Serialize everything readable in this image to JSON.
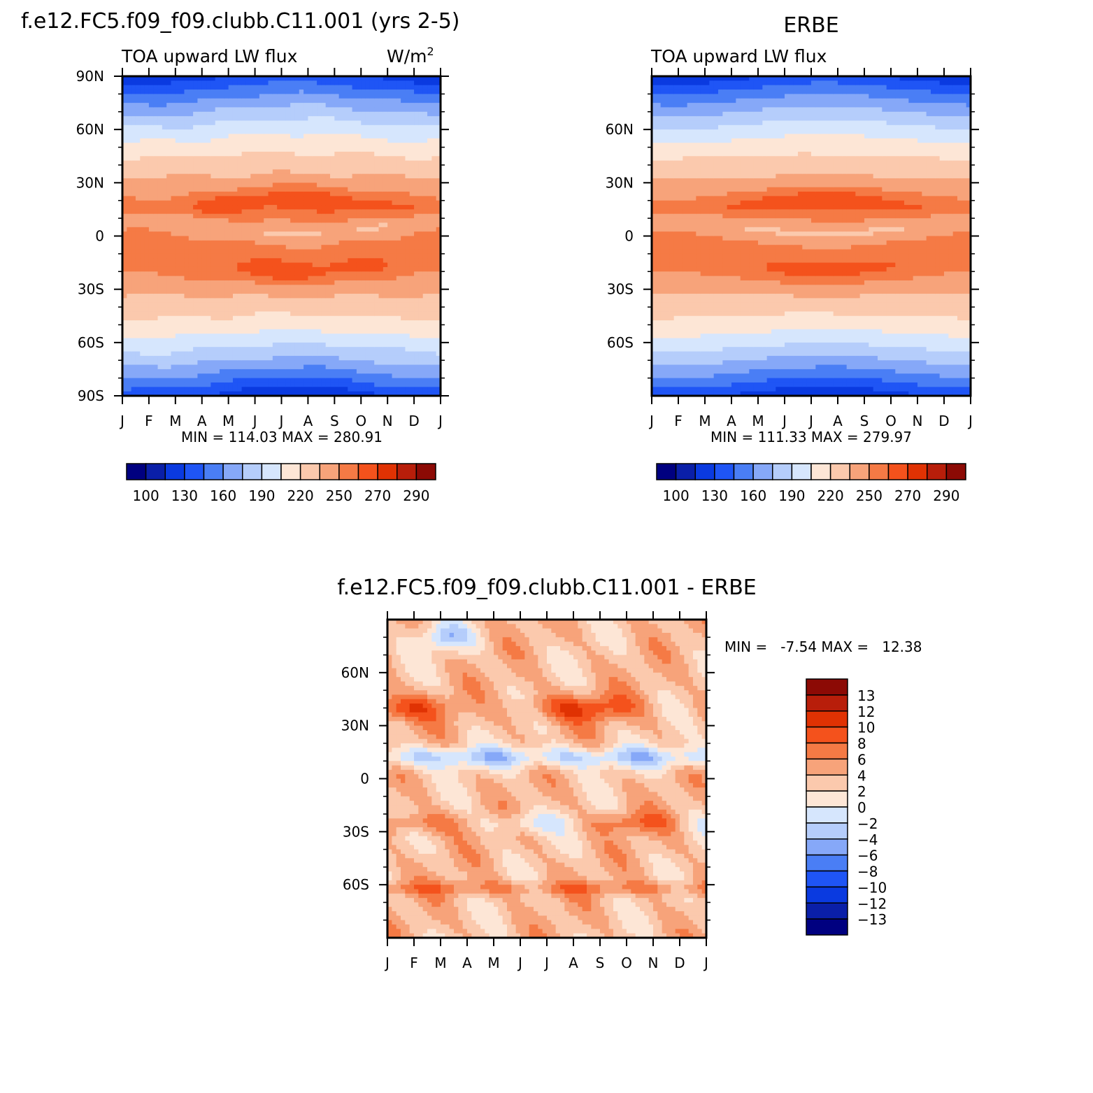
{
  "figure": {
    "case_title": "f.e12.FC5.f09_f09.clubb.C11.001 (yrs 2-5)",
    "obs_title": "ERBE",
    "diff_title": "f.e12.FC5.f09_f09.clubb.C11.001 - ERBE"
  },
  "colors": {
    "abs_levels": [
      "#000080",
      "#0a1fa8",
      "#0a3ae0",
      "#1f55f5",
      "#4a7ef5",
      "#86a8f8",
      "#b5cdfb",
      "#d6e6fd",
      "#fde6d6",
      "#fbc9ad",
      "#f7a37a",
      "#f57a45",
      "#f4521c",
      "#e03203",
      "#b81e0a",
      "#8c0a05"
    ],
    "diff_levels": [
      "#000080",
      "#0a1fa8",
      "#0a3ae0",
      "#1f55f5",
      "#4a7ef5",
      "#86a8f8",
      "#b5cdfb",
      "#d6e6fd",
      "#fde6d6",
      "#fbc9ad",
      "#f7a37a",
      "#f57a45",
      "#f4521c",
      "#e03203",
      "#b81e0a",
      "#8c0a05"
    ]
  },
  "chart_data": [
    {
      "type": "heatmap",
      "title": "f.e12.FC5.f09_f09.clubb.C11.001 (yrs 2-5)",
      "subtitle": "TOA upward LW flux",
      "units": "W/m2",
      "units_base": "W/m",
      "units_sup": "2",
      "x_ticks": [
        "J",
        "F",
        "M",
        "A",
        "M",
        "J",
        "J",
        "A",
        "S",
        "O",
        "N",
        "D",
        "J"
      ],
      "y_ticks": [
        "90N",
        "60N",
        "30N",
        "0",
        "30S",
        "60S",
        "90S"
      ],
      "ylim": [
        -90,
        90
      ],
      "minmax_text": "MIN = 114.03 MAX = 280.91",
      "min": 114.03,
      "max": 280.91,
      "colorbar_labels": [
        "100",
        "130",
        "160",
        "190",
        "220",
        "250",
        "270",
        "290"
      ],
      "levels": [
        100,
        115,
        130,
        145,
        160,
        175,
        190,
        205,
        220,
        235,
        250,
        260,
        270,
        280,
        290
      ]
    },
    {
      "type": "heatmap",
      "title": "ERBE",
      "subtitle": "TOA upward LW flux",
      "x_ticks": [
        "J",
        "F",
        "M",
        "A",
        "M",
        "J",
        "J",
        "A",
        "S",
        "O",
        "N",
        "D",
        "J"
      ],
      "y_ticks": [
        "60N",
        "30N",
        "0",
        "30S",
        "60S"
      ],
      "ylim": [
        -90,
        90
      ],
      "minmax_text": "MIN = 111.33 MAX = 279.97",
      "min": 111.33,
      "max": 279.97,
      "colorbar_labels": [
        "100",
        "130",
        "160",
        "190",
        "220",
        "250",
        "270",
        "290"
      ],
      "levels": [
        100,
        115,
        130,
        145,
        160,
        175,
        190,
        205,
        220,
        235,
        250,
        260,
        270,
        280,
        290
      ]
    },
    {
      "type": "heatmap",
      "title": "f.e12.FC5.f09_f09.clubb.C11.001 - ERBE",
      "x_ticks": [
        "J",
        "F",
        "M",
        "A",
        "M",
        "J",
        "J",
        "A",
        "S",
        "O",
        "N",
        "D",
        "J"
      ],
      "y_ticks": [
        "60N",
        "30N",
        "0",
        "30S",
        "60S"
      ],
      "ylim": [
        -90,
        90
      ],
      "minmax_text": "MIN =   -7.54 MAX =   12.38",
      "min": -7.54,
      "max": 12.38,
      "colorbar_labels": [
        "13",
        "12",
        "10",
        "8",
        "6",
        "4",
        "2",
        "0",
        "-2",
        "-4",
        "-6",
        "-8",
        "-10",
        "-12",
        "-13"
      ],
      "levels": [
        -13,
        -12,
        -10,
        -8,
        -6,
        -4,
        -2,
        0,
        2,
        4,
        6,
        8,
        10,
        12,
        13
      ]
    }
  ]
}
